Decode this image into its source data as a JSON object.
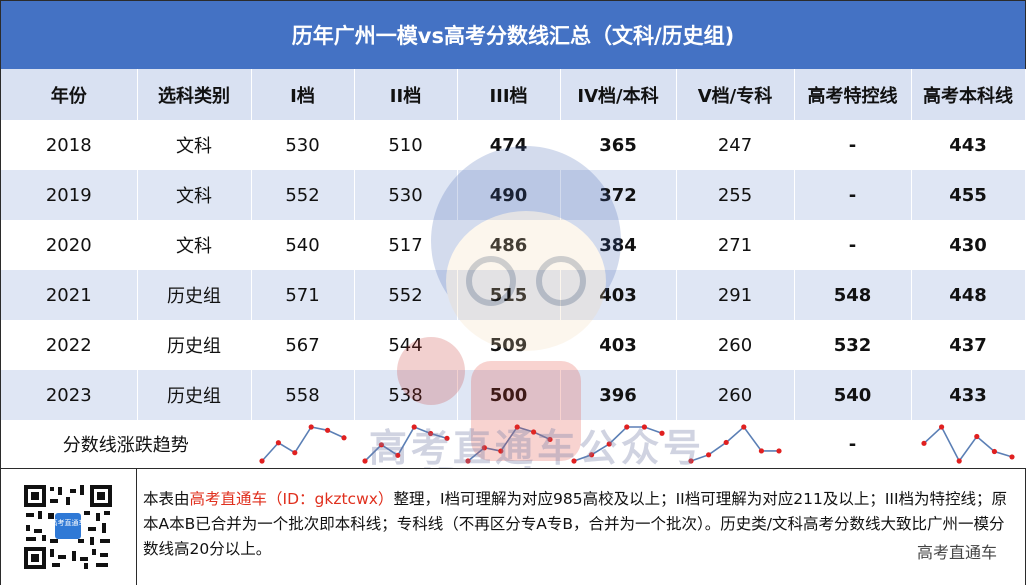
{
  "title": "历年广州一模vs高考分数线汇总（文科/历史组)",
  "headers": [
    "年份",
    "选科类别",
    "I档",
    "II档",
    "III档",
    "IV档/本科",
    "V档/专科",
    "高考特控线",
    "高考本科线"
  ],
  "rows": [
    {
      "year": "2018",
      "category": "文科",
      "i": "530",
      "ii": "510",
      "iii": "474",
      "iv": "365",
      "v": "247",
      "special": "-",
      "undergrad": "443"
    },
    {
      "year": "2019",
      "category": "文科",
      "i": "552",
      "ii": "530",
      "iii": "490",
      "iv": "372",
      "v": "255",
      "special": "-",
      "undergrad": "455"
    },
    {
      "year": "2020",
      "category": "文科",
      "i": "540",
      "ii": "517",
      "iii": "486",
      "iv": "384",
      "v": "271",
      "special": "-",
      "undergrad": "430"
    },
    {
      "year": "2021",
      "category": "历史组",
      "i": "571",
      "ii": "552",
      "iii": "515",
      "iv": "403",
      "v": "291",
      "special": "548",
      "undergrad": "448"
    },
    {
      "year": "2022",
      "category": "历史组",
      "i": "567",
      "ii": "544",
      "iii": "509",
      "iv": "403",
      "v": "260",
      "special": "532",
      "undergrad": "437"
    },
    {
      "year": "2023",
      "category": "历史组",
      "i": "558",
      "ii": "538",
      "iii": "500",
      "iv": "396",
      "v": "260",
      "special": "540",
      "undergrad": "433"
    }
  ],
  "trend": {
    "label": "分数线涨跌趋势",
    "special_placeholder": "-",
    "line_color": "#5b7fb5",
    "point_color": "#e02020",
    "series": {
      "i": [
        530,
        552,
        540,
        571,
        567,
        558
      ],
      "ii": [
        510,
        530,
        517,
        552,
        544,
        538
      ],
      "iii": [
        474,
        490,
        486,
        515,
        509,
        500
      ],
      "iv": [
        365,
        372,
        384,
        403,
        403,
        396
      ],
      "v": [
        247,
        255,
        271,
        291,
        260,
        260
      ],
      "undergrad": [
        443,
        455,
        430,
        448,
        437,
        433
      ]
    }
  },
  "footer": {
    "note_pre": "本表由",
    "note_brand": "高考直通车（ID：gkztcwx）",
    "note_post": "整理，I档可理解为对应985高校及以上；II档可理解为对应211及以上；III档为特控线；原本A本B已合并为一个批次即本科线；专科线（不再区分专A专B，合并为一个批次）。历史类/文科高考分数线大致比广州一模分数线高20分以上。",
    "credit": "高考直通车",
    "qr_badge": "高考直通车"
  },
  "watermark": {
    "line1": "高考直通车公众号",
    "line2": "ID: gkztcwx"
  },
  "colors": {
    "title_bg": "#4472c4",
    "header_bg": "#d9e1f2",
    "stripe_bg": "#dfe6f4",
    "brand_red": "#e0301e"
  }
}
